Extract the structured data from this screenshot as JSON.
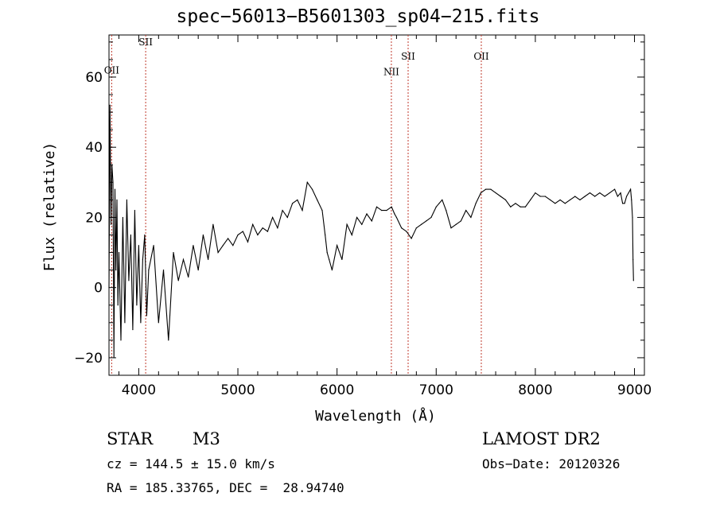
{
  "chart_data": {
    "type": "line",
    "title": "spec−56013−B5601303_sp04−215.fits",
    "xlabel": "Wavelength (Å)",
    "ylabel": "Flux (relative)",
    "xlim": [
      3700,
      9100
    ],
    "ylim": [
      -25,
      72
    ],
    "xticks": [
      4000,
      5000,
      6000,
      7000,
      8000,
      9000
    ],
    "yticks": [
      -20,
      0,
      20,
      40,
      60
    ],
    "ytick_labels": [
      "−20",
      "0",
      "20",
      "40",
      "60"
    ],
    "grid": false,
    "series": [
      {
        "x": [
          3700,
          3710,
          3720,
          3730,
          3740,
          3750,
          3760,
          3770,
          3780,
          3790,
          3800,
          3820,
          3840,
          3860,
          3880,
          3900,
          3920,
          3940,
          3960,
          3980,
          4000,
          4020,
          4040,
          4060,
          4080,
          4100,
          4150,
          4200,
          4250,
          4300,
          4350,
          4400,
          4450,
          4500,
          4550,
          4600,
          4650,
          4700,
          4750,
          4800,
          4850,
          4900,
          4950,
          5000,
          5050,
          5100,
          5150,
          5200,
          5250,
          5300,
          5350,
          5400,
          5450,
          5500,
          5550,
          5600,
          5650,
          5700,
          5750,
          5800,
          5850,
          5880,
          5900,
          5920,
          5950,
          6000,
          6050,
          6100,
          6150,
          6200,
          6250,
          6300,
          6350,
          6400,
          6450,
          6500,
          6550,
          6580,
          6600,
          6650,
          6700,
          6750,
          6800,
          6850,
          6900,
          6950,
          7000,
          7030,
          7060,
          7100,
          7150,
          7200,
          7250,
          7300,
          7350,
          7400,
          7450,
          7500,
          7550,
          7600,
          7650,
          7700,
          7750,
          7800,
          7850,
          7900,
          7950,
          8000,
          8050,
          8100,
          8150,
          8200,
          8250,
          8300,
          8350,
          8400,
          8450,
          8500,
          8550,
          8600,
          8650,
          8700,
          8750,
          8800,
          8830,
          8860,
          8880,
          8900,
          8920,
          8940,
          8960,
          8970,
          8980,
          8985,
          8990
        ],
        "y": [
          0,
          52,
          18,
          35,
          30,
          -20,
          28,
          5,
          25,
          -5,
          10,
          -15,
          20,
          -10,
          25,
          2,
          15,
          -12,
          22,
          -5,
          12,
          -10,
          8,
          15,
          -8,
          5,
          12,
          -10,
          5,
          -15,
          10,
          2,
          8,
          3,
          12,
          5,
          15,
          8,
          18,
          10,
          12,
          14,
          12,
          15,
          16,
          13,
          18,
          15,
          17,
          16,
          20,
          17,
          22,
          20,
          24,
          25,
          22,
          30,
          28,
          25,
          22,
          15,
          10,
          8,
          5,
          12,
          8,
          18,
          15,
          20,
          18,
          21,
          19,
          23,
          22,
          22,
          23,
          21,
          20,
          17,
          16,
          14,
          17,
          18,
          19,
          20,
          23,
          24,
          25,
          22,
          17,
          18,
          19,
          22,
          20,
          24,
          27,
          28,
          28,
          27,
          26,
          25,
          23,
          24,
          23,
          23,
          25,
          27,
          26,
          26,
          25,
          24,
          25,
          24,
          25,
          26,
          25,
          26,
          27,
          26,
          27,
          26,
          27,
          28,
          26,
          27,
          24,
          24,
          26,
          27,
          28,
          25,
          20,
          8,
          2
        ]
      }
    ],
    "line_markers": [
      {
        "label": "OII",
        "x": 3727,
        "label_y": 61
      },
      {
        "label": "SII",
        "x": 4070,
        "label_y": 69
      },
      {
        "label": "NII",
        "x": 6548,
        "label_y": 60.5
      },
      {
        "label": "SII",
        "x": 6717,
        "label_y": 65
      },
      {
        "label": "OII",
        "x": 7455,
        "label_y": 65
      }
    ],
    "marker_color": "#c0392b",
    "line_color": "#000000"
  },
  "info": {
    "object_class": "STAR",
    "subclass": "M3",
    "survey": "LAMOST DR2",
    "cz": "cz = 144.5 ± 15.0 km/s",
    "obs_date": "Obs−Date: 20120326",
    "coords": "RA = 185.33765, DEC =  28.94740"
  }
}
